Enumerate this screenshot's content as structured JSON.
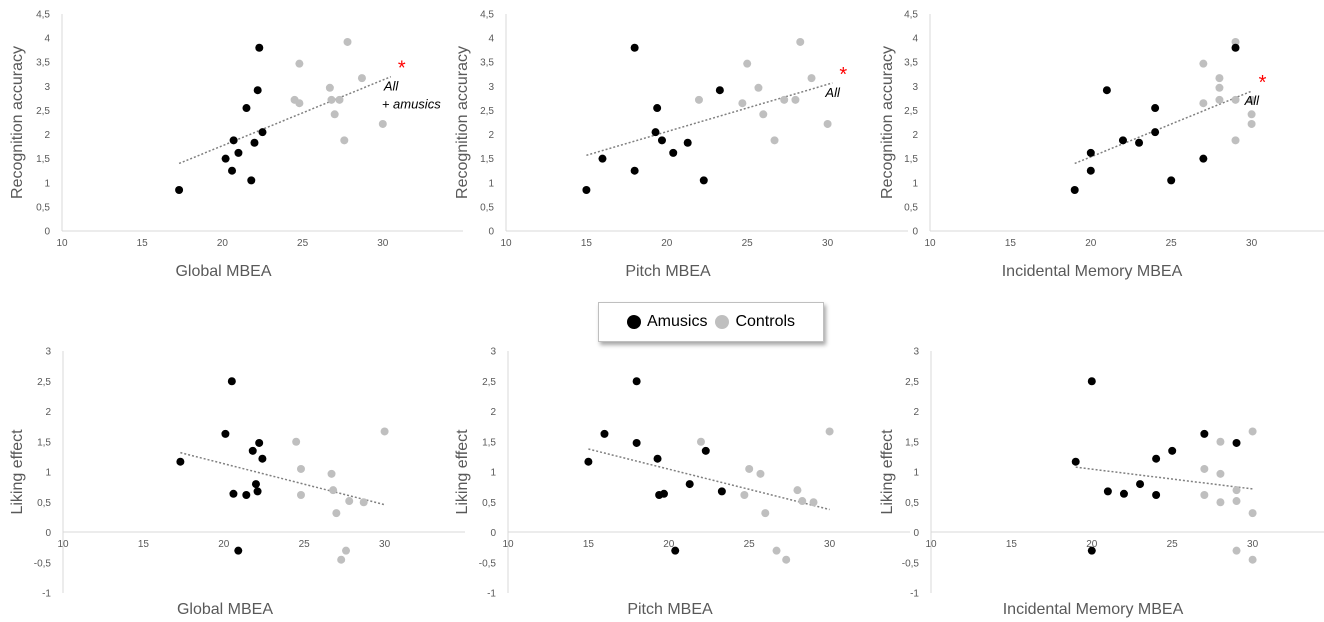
{
  "colors": {
    "amusics": "#000000",
    "controls": "#bfbfbf",
    "trend": "#808080",
    "star": "#ff0000"
  },
  "legend": {
    "amusics": "Amusics",
    "controls": "Controls"
  },
  "chart_data": [
    {
      "type": "scatter",
      "xlabel": "Global MBEA",
      "ylabel": "Recognition accuracy",
      "xlim": [
        10,
        35
      ],
      "ylim": [
        0,
        4.5
      ],
      "xticks": [
        "10",
        "15",
        "20",
        "25",
        "30"
      ],
      "yticks": [
        "0",
        "0,5",
        "1",
        "1,5",
        "2",
        "2,5",
        "3",
        "3,5",
        "4",
        "4,5"
      ],
      "annotation": {
        "star": "*",
        "lines": [
          "All",
          "+ amusics"
        ]
      },
      "trend": {
        "x": [
          17.3,
          30.5
        ],
        "y": [
          1.4,
          3.2
        ]
      },
      "series": [
        {
          "name": "Amusics",
          "x": [
            17.3,
            20.2,
            20.6,
            20.7,
            21.0,
            21.5,
            21.8,
            22.0,
            22.2,
            22.3,
            22.5
          ],
          "y": [
            0.85,
            1.5,
            1.25,
            1.88,
            1.62,
            2.55,
            1.05,
            1.83,
            2.92,
            3.8,
            2.05
          ]
        },
        {
          "name": "Controls",
          "x": [
            24.5,
            24.8,
            24.8,
            26.7,
            26.8,
            27.0,
            27.3,
            27.6,
            27.8,
            28.7,
            30.0
          ],
          "y": [
            2.72,
            2.65,
            3.47,
            2.97,
            2.72,
            2.42,
            2.72,
            1.88,
            3.92,
            3.17,
            2.22
          ]
        }
      ]
    },
    {
      "type": "scatter",
      "xlabel": "Pitch MBEA",
      "ylabel": "Recognition accuracy",
      "xlim": [
        10,
        35
      ],
      "ylim": [
        0,
        4.5
      ],
      "xticks": [
        "10",
        "15",
        "20",
        "25",
        "30"
      ],
      "yticks": [
        "0",
        "0,5",
        "1",
        "1,5",
        "2",
        "2,5",
        "3",
        "3,5",
        "4",
        "4,5"
      ],
      "annotation": {
        "star": "*",
        "lines": [
          "All"
        ]
      },
      "trend": {
        "x": [
          15.0,
          30.3
        ],
        "y": [
          1.57,
          3.07
        ]
      },
      "series": [
        {
          "name": "Amusics",
          "x": [
            15.0,
            16.0,
            18.0,
            18.0,
            19.3,
            19.4,
            19.7,
            20.4,
            21.3,
            22.3,
            23.3
          ],
          "y": [
            0.85,
            1.5,
            1.25,
            3.8,
            2.05,
            2.55,
            1.88,
            1.62,
            1.83,
            1.05,
            2.92
          ]
        },
        {
          "name": "Controls",
          "x": [
            22.0,
            24.7,
            25.0,
            25.7,
            26.0,
            26.7,
            27.3,
            28.0,
            28.3,
            29.0,
            30.0
          ],
          "y": [
            2.72,
            2.65,
            3.47,
            2.97,
            2.42,
            1.88,
            2.72,
            2.72,
            3.92,
            3.17,
            2.22
          ]
        }
      ]
    },
    {
      "type": "scatter",
      "xlabel": "Incidental Memory MBEA",
      "ylabel": "Recognition accuracy",
      "xlim": [
        10,
        35
      ],
      "ylim": [
        0,
        4.5
      ],
      "xticks": [
        "10",
        "15",
        "20",
        "25",
        "30"
      ],
      "yticks": [
        "0",
        "0,5",
        "1",
        "1,5",
        "2",
        "2,5",
        "3",
        "3,5",
        "4",
        "4,5"
      ],
      "annotation": {
        "star": "*",
        "lines": [
          "All"
        ]
      },
      "trend": {
        "x": [
          19.0,
          30.0
        ],
        "y": [
          1.4,
          2.9
        ]
      },
      "series": [
        {
          "name": "Amusics",
          "x": [
            19.0,
            20.0,
            20.0,
            21.0,
            22.0,
            23.0,
            24.0,
            24.0,
            25.0,
            27.0,
            29.0
          ],
          "y": [
            0.85,
            1.25,
            1.62,
            2.92,
            1.88,
            1.83,
            2.05,
            2.55,
            1.05,
            1.5,
            3.8
          ]
        },
        {
          "name": "Controls",
          "x": [
            27.0,
            27.0,
            28.0,
            28.0,
            28.0,
            29.0,
            29.0,
            29.0,
            30.0,
            30.0,
            30.0
          ],
          "y": [
            3.47,
            2.65,
            3.17,
            2.97,
            2.72,
            3.92,
            2.72,
            1.88,
            2.72,
            2.42,
            2.22
          ]
        }
      ]
    },
    {
      "type": "scatter",
      "xlabel": "Global MBEA",
      "ylabel": "Liking effect",
      "xlim": [
        10,
        35
      ],
      "ylim": [
        -1,
        3
      ],
      "xticks": [
        "10",
        "15",
        "20",
        "25",
        "30"
      ],
      "yticks": [
        "-1",
        "-0,5",
        "0",
        "0,5",
        "1",
        "1,5",
        "2",
        "2,5",
        "3"
      ],
      "trend": {
        "x": [
          17.3,
          30.0
        ],
        "y": [
          1.32,
          0.46
        ]
      },
      "series": [
        {
          "name": "Amusics",
          "x": [
            17.3,
            20.1,
            20.5,
            20.6,
            20.9,
            21.4,
            21.8,
            22.0,
            22.1,
            22.2,
            22.4
          ],
          "y": [
            1.17,
            1.63,
            2.5,
            0.64,
            -0.3,
            0.62,
            1.35,
            0.8,
            0.68,
            1.48,
            1.22
          ]
        },
        {
          "name": "Controls",
          "x": [
            24.5,
            24.8,
            24.8,
            26.7,
            26.8,
            27.0,
            27.3,
            27.6,
            27.8,
            28.7,
            30.0
          ],
          "y": [
            1.5,
            1.05,
            0.62,
            0.97,
            0.7,
            0.32,
            -0.45,
            -0.3,
            0.52,
            0.5,
            1.67
          ]
        }
      ]
    },
    {
      "type": "scatter",
      "xlabel": "Pitch MBEA",
      "ylabel": "Liking effect",
      "xlim": [
        10,
        35
      ],
      "ylim": [
        -1,
        3
      ],
      "xticks": [
        "10",
        "15",
        "20",
        "25",
        "30"
      ],
      "yticks": [
        "-1",
        "-0,5",
        "0",
        "0,5",
        "1",
        "1,5",
        "2",
        "2,5",
        "3"
      ],
      "trend": {
        "x": [
          15.0,
          30.0
        ],
        "y": [
          1.38,
          0.38
        ]
      },
      "series": [
        {
          "name": "Amusics",
          "x": [
            15.0,
            16.0,
            18.0,
            18.0,
            19.3,
            19.4,
            19.7,
            20.4,
            21.3,
            22.3,
            23.3
          ],
          "y": [
            1.17,
            1.63,
            2.5,
            1.48,
            1.22,
            0.62,
            0.64,
            -0.3,
            0.8,
            1.35,
            0.68
          ]
        },
        {
          "name": "Controls",
          "x": [
            22.0,
            24.7,
            25.0,
            25.7,
            26.0,
            26.7,
            27.3,
            28.0,
            28.3,
            29.0,
            30.0
          ],
          "y": [
            1.5,
            0.62,
            1.05,
            0.97,
            0.32,
            -0.3,
            -0.45,
            0.7,
            0.52,
            0.5,
            1.67
          ]
        }
      ]
    },
    {
      "type": "scatter",
      "xlabel": "Incidental Memory MBEA",
      "ylabel": "Liking effect",
      "xlim": [
        10,
        35
      ],
      "ylim": [
        -1,
        3
      ],
      "xticks": [
        "10",
        "15",
        "20",
        "25",
        "30"
      ],
      "yticks": [
        "-1",
        "-0,5",
        "0",
        "0,5",
        "1",
        "1,5",
        "2",
        "2,5",
        "3"
      ],
      "trend": {
        "x": [
          19.0,
          30.0
        ],
        "y": [
          1.08,
          0.72
        ]
      },
      "series": [
        {
          "name": "Amusics",
          "x": [
            19.0,
            20.0,
            20.0,
            21.0,
            22.0,
            23.0,
            24.0,
            24.0,
            25.0,
            27.0,
            29.0
          ],
          "y": [
            1.17,
            2.5,
            -0.3,
            0.68,
            0.64,
            0.8,
            1.22,
            0.62,
            1.35,
            1.63,
            1.48
          ]
        },
        {
          "name": "Controls",
          "x": [
            27.0,
            27.0,
            28.0,
            28.0,
            28.0,
            29.0,
            29.0,
            29.0,
            30.0,
            30.0,
            30.0
          ],
          "y": [
            1.05,
            0.62,
            1.5,
            0.97,
            0.5,
            0.7,
            0.52,
            -0.3,
            1.67,
            0.32,
            -0.45
          ]
        }
      ]
    }
  ]
}
